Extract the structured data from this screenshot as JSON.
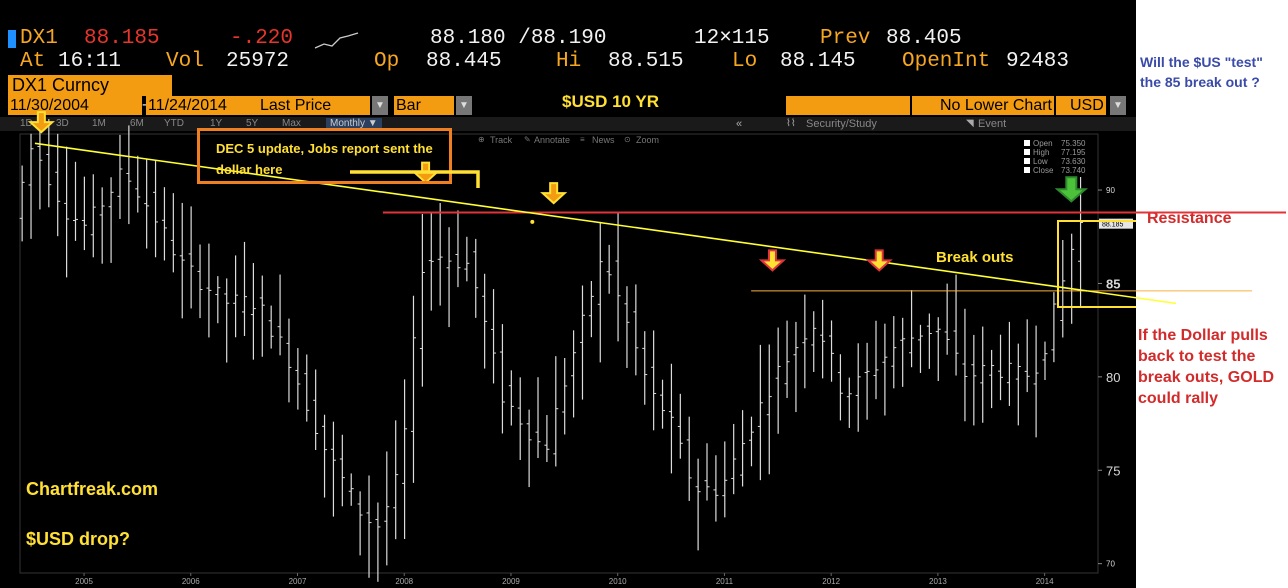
{
  "header": {
    "ticker": "DX1",
    "last": "88.185",
    "change": "-.220",
    "bid_ask": "88.180 /88.190",
    "size": "12×115",
    "prev_label": "Prev",
    "prev": "88.405",
    "at_label": "At",
    "time": "16:11",
    "vol_label": "Vol",
    "vol": "25972",
    "op_label": "Op",
    "open": "88.445",
    "hi_label": "Hi",
    "hi": "88.515",
    "lo_label": "Lo",
    "lo": "88.145",
    "openint_label": "OpenInt",
    "openint": "92483"
  },
  "security": "DX1 Curncy",
  "controls": {
    "start_date": "11/30/2004",
    "end_date": "11/24/2014",
    "field": "Last Price",
    "style": "Bar",
    "lower_chart": "No Lower Chart",
    "currency": "USD"
  },
  "chart_title": "$USD 10 YR",
  "toolbar": {
    "periods": [
      "1D",
      "3D",
      "1M",
      "6M",
      "YTD",
      "1Y",
      "5Y",
      "Max"
    ],
    "frequency": "Monthly ▼",
    "security_study": "Security/Study",
    "event": "Event",
    "tools": [
      "Track",
      "Annotate",
      "News",
      "Zoom"
    ]
  },
  "ohlc_legend": [
    {
      "label": "Open",
      "value": "75.350"
    },
    {
      "label": "High",
      "value": "77.195"
    },
    {
      "label": "Low",
      "value": "73.630"
    },
    {
      "label": "Close",
      "value": "73.740"
    }
  ],
  "annotations": {
    "update_box": "DEC 5 update, Jobs report sent the dollar here",
    "breakouts": "Break outs",
    "resistance": "Resistance",
    "question": "Will the $US \"test\" the 85 break out ?",
    "gold_note": "If the Dollar pulls back to test the break outs, GOLD could rally",
    "site": "Chartfreak.com",
    "usd_drop": "$USD drop?",
    "level_85": "85",
    "last_tag": "88.185"
  },
  "colors": {
    "background": "#000000",
    "bars": "#dcdcdc",
    "trendline": "#ffff33",
    "resistance": "#e0343a",
    "support": "#f5b041",
    "header_orange": "#f5a623",
    "arrow_orange": "#f39c12",
    "arrow_green": "#4cc23a"
  },
  "chart_data": {
    "type": "bar",
    "subtype": "ohlc",
    "title": "$USD 10 YR",
    "x_ticks": [
      "2005",
      "2006",
      "2007",
      "2008",
      "2009",
      "2010",
      "2011",
      "2012",
      "2013",
      "2014"
    ],
    "y_ticks": [
      70,
      75,
      80,
      85,
      90
    ],
    "ylim": [
      69.5,
      93
    ],
    "x_range": [
      2004.9,
      2015.0
    ],
    "resistance_level": 88.8,
    "support_level": 84.6,
    "trendline": [
      {
        "x": 2005.04,
        "y": 92.5
      },
      {
        "x": 2014.9,
        "y": 84.6
      }
    ],
    "arrows": [
      {
        "x": 2005.1,
        "y": 93.1,
        "color": "orange"
      },
      {
        "x": 2008.7,
        "y": 90.4,
        "color": "orange"
      },
      {
        "x": 2009.9,
        "y": 89.3,
        "color": "orange"
      },
      {
        "x": 2011.95,
        "y": 85.7,
        "color": "red"
      },
      {
        "x": 2012.95,
        "y": 85.7,
        "color": "red"
      },
      {
        "x": 2014.75,
        "y": 89.4,
        "color": "green"
      }
    ],
    "series": [
      {
        "key_points": [
          [
            2004.92,
            88.5
          ],
          [
            2005.1,
            92.5
          ],
          [
            2005.4,
            89.0
          ],
          [
            2005.6,
            88.0
          ],
          [
            2005.95,
            91.0
          ],
          [
            2006.2,
            89.0
          ],
          [
            2006.5,
            86.0
          ],
          [
            2006.9,
            84.0
          ],
          [
            2007.2,
            84.0
          ],
          [
            2007.5,
            81.0
          ],
          [
            2007.85,
            76.0
          ],
          [
            2008.2,
            72.5
          ],
          [
            2008.35,
            72.0
          ],
          [
            2008.55,
            75.0
          ],
          [
            2008.75,
            86.0
          ],
          [
            2008.9,
            86.5
          ],
          [
            2009.2,
            86.0
          ],
          [
            2009.5,
            79.0
          ],
          [
            2009.9,
            76.0
          ],
          [
            2010.1,
            80.0
          ],
          [
            2010.45,
            86.5
          ],
          [
            2010.6,
            84.0
          ],
          [
            2010.9,
            79.0
          ],
          [
            2011.05,
            78.0
          ],
          [
            2011.3,
            74.0
          ],
          [
            2011.55,
            74.0
          ],
          [
            2011.8,
            77.0
          ],
          [
            2012.05,
            80.0
          ],
          [
            2012.35,
            82.5
          ],
          [
            2012.45,
            83.0
          ],
          [
            2012.7,
            79.0
          ],
          [
            2012.9,
            80.0
          ],
          [
            2013.15,
            81.5
          ],
          [
            2013.45,
            82.5
          ],
          [
            2013.6,
            82.5
          ],
          [
            2013.85,
            80.0
          ],
          [
            2014.1,
            80.5
          ],
          [
            2014.4,
            80.0
          ],
          [
            2014.55,
            81.0
          ],
          [
            2014.75,
            85.0
          ],
          [
            2014.9,
            88.2
          ]
        ]
      }
    ]
  }
}
